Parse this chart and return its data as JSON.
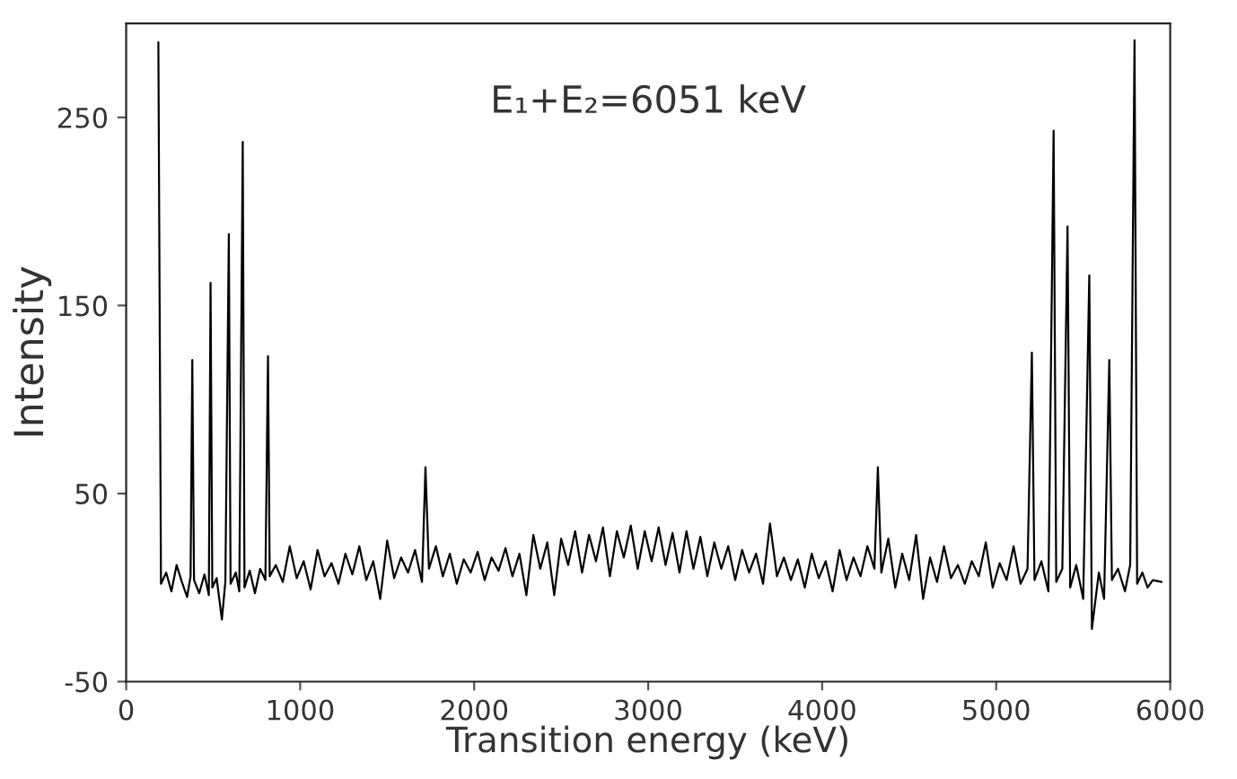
{
  "chart_data": {
    "type": "line",
    "xlabel": "Transition energy (keV)",
    "ylabel": "Intensity",
    "annotations": [
      "E₁+E₂=6051 keV"
    ],
    "xlim": [
      0,
      6000
    ],
    "xticks": [
      0,
      1000,
      2000,
      3000,
      4000,
      5000,
      6000
    ],
    "ylim": [
      -50,
      300
    ],
    "yticks": [
      -50,
      50,
      150,
      250
    ],
    "grid": false,
    "marker": "none",
    "line_style": "solid",
    "series": [
      {
        "color": "#000000",
        "x": [
          185,
          200,
          230,
          260,
          290,
          320,
          350,
          370,
          380,
          390,
          420,
          450,
          475,
          485,
          495,
          520,
          550,
          570,
          590,
          600,
          630,
          650,
          670,
          680,
          710,
          740,
          770,
          800,
          815,
          825,
          860,
          900,
          940,
          980,
          1020,
          1060,
          1100,
          1140,
          1180,
          1220,
          1260,
          1300,
          1340,
          1380,
          1420,
          1460,
          1500,
          1540,
          1580,
          1620,
          1660,
          1700,
          1720,
          1740,
          1780,
          1820,
          1860,
          1900,
          1940,
          1980,
          2020,
          2060,
          2100,
          2140,
          2180,
          2220,
          2260,
          2300,
          2340,
          2380,
          2420,
          2460,
          2500,
          2540,
          2580,
          2620,
          2660,
          2700,
          2740,
          2780,
          2820,
          2860,
          2900,
          2940,
          2980,
          3020,
          3060,
          3100,
          3140,
          3180,
          3220,
          3260,
          3300,
          3340,
          3380,
          3420,
          3460,
          3500,
          3540,
          3580,
          3620,
          3660,
          3700,
          3740,
          3780,
          3820,
          3860,
          3900,
          3940,
          3980,
          4020,
          4060,
          4100,
          4140,
          4180,
          4220,
          4260,
          4300,
          4320,
          4340,
          4380,
          4420,
          4460,
          4500,
          4540,
          4580,
          4620,
          4660,
          4700,
          4740,
          4780,
          4820,
          4860,
          4900,
          4940,
          4980,
          5020,
          5060,
          5100,
          5140,
          5180,
          5205,
          5220,
          5260,
          5300,
          5330,
          5345,
          5380,
          5410,
          5425,
          5460,
          5500,
          5535,
          5550,
          5590,
          5620,
          5650,
          5665,
          5700,
          5740,
          5770,
          5795,
          5810,
          5840,
          5870,
          5900,
          5950
        ],
        "values": [
          290,
          2,
          8,
          -2,
          12,
          3,
          -5,
          6,
          121,
          4,
          -3,
          7,
          -4,
          162,
          0,
          5,
          -17,
          3,
          188,
          2,
          8,
          -2,
          237,
          0,
          9,
          -3,
          10,
          4,
          123,
          6,
          12,
          3,
          22,
          5,
          14,
          -1,
          20,
          6,
          13,
          2,
          18,
          7,
          22,
          4,
          14,
          -6,
          25,
          5,
          16,
          8,
          20,
          3,
          64,
          10,
          22,
          6,
          18,
          2,
          15,
          8,
          19,
          4,
          16,
          9,
          21,
          6,
          18,
          -4,
          28,
          10,
          24,
          -4,
          26,
          12,
          30,
          8,
          28,
          14,
          32,
          6,
          30,
          16,
          33,
          10,
          30,
          14,
          32,
          12,
          29,
          8,
          30,
          10,
          27,
          6,
          24,
          10,
          22,
          4,
          20,
          8,
          18,
          2,
          34,
          6,
          16,
          4,
          15,
          0,
          18,
          5,
          14,
          -2,
          20,
          4,
          16,
          6,
          22,
          10,
          64,
          8,
          26,
          0,
          18,
          4,
          28,
          -6,
          16,
          3,
          22,
          5,
          12,
          2,
          14,
          6,
          24,
          0,
          13,
          4,
          22,
          2,
          10,
          125,
          4,
          14,
          -2,
          243,
          3,
          10,
          192,
          0,
          12,
          -6,
          166,
          -22,
          8,
          -6,
          121,
          4,
          10,
          -2,
          12,
          291,
          2,
          8,
          0,
          4,
          3
        ]
      }
    ]
  }
}
